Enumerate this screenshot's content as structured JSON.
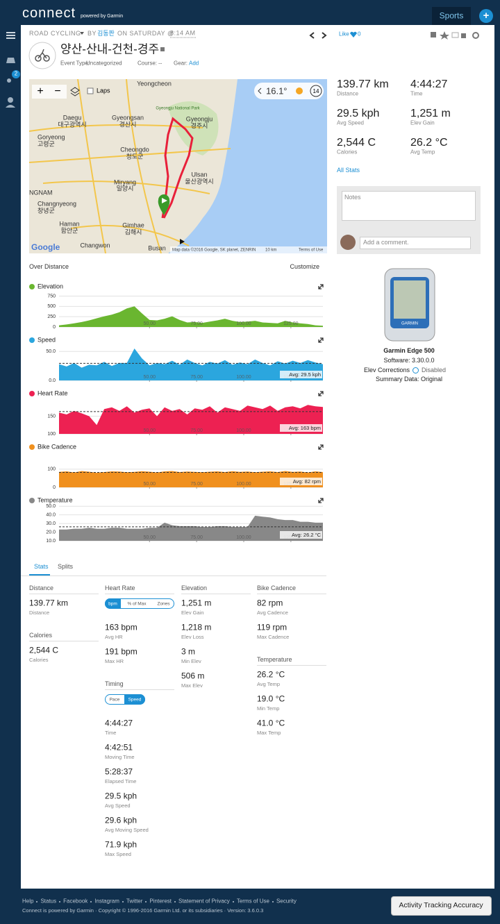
{
  "header": {
    "logo": "connect",
    "powered_by": "powered by Garmin",
    "sports": "Sports",
    "add": "+"
  },
  "sidebar": {
    "badge": "2"
  },
  "activity": {
    "type": "ROAD CYCLING",
    "by": "BY",
    "author": "김동판",
    "on": "ON SATURDAY @",
    "time": "8:14 AM",
    "title": "양산-산내-건천-경주",
    "event_type_label": "Event Type:",
    "event_type": "Uncategorized",
    "course_label": "Course:",
    "course": "--",
    "gear_label": "Gear:",
    "gear": "Add",
    "like": "Like",
    "likes": "0"
  },
  "map": {
    "zoom_in": "+",
    "zoom_out": "−",
    "laps": "Laps",
    "temperature": "16.1°",
    "wind": "14",
    "google": "Google",
    "attribution": "Map data ©2016 Google, SK planet, ZENRIN",
    "scale": "10 km",
    "terms": "Terms of Use",
    "labels": [
      "Yeongcheon",
      "Daegu",
      "대구광역시",
      "Gyeongsan",
      "경산시",
      "Gyeongju",
      "경주시",
      "Gyeongju National Park",
      "Cheongdo",
      "청도군",
      "Ulsan",
      "울산광역시",
      "Miryang",
      "밀양시",
      "Gimhae",
      "김해시",
      "Haman",
      "함안군",
      "Goryeong",
      "고령군",
      "Changwon",
      "Busan",
      "Changnyeong",
      "창녕군",
      "NGNAM"
    ]
  },
  "summary": [
    {
      "value": "139.77 km",
      "label": "Distance"
    },
    {
      "value": "4:44:27",
      "label": "Time"
    },
    {
      "value": "29.5 kph",
      "label": "Avg Speed"
    },
    {
      "value": "1,251 m",
      "label": "Elev Gain"
    },
    {
      "value": "2,544 C",
      "label": "Calories"
    },
    {
      "value": "26.2 °C",
      "label": "Avg Temp"
    }
  ],
  "all_stats": "All Stats",
  "notes": {
    "placeholder": "Notes",
    "comment_placeholder": "Add a comment."
  },
  "device": {
    "brand": "GARMIN",
    "name": "Garmin Edge 500",
    "software": "Software: 3.30.0.0",
    "elev_corrections": "Elev Corrections",
    "elev_status": "Disabled",
    "summary_data": "Summary Data: Original"
  },
  "profiles": {
    "over": "Over Distance",
    "customize": "Customize",
    "x": [
      2,
      6,
      10,
      14,
      18,
      22,
      26,
      30,
      34,
      38,
      42,
      46,
      50,
      54,
      58,
      62,
      66,
      70,
      74,
      78,
      82,
      86,
      90,
      94,
      98,
      102,
      106,
      110,
      114,
      118,
      122,
      126,
      130,
      134,
      138,
      142
    ],
    "xlim": [
      2,
      142
    ],
    "xticks": [
      {
        "value": 50,
        "label": "50.00"
      },
      {
        "value": 75,
        "label": "75.00"
      },
      {
        "value": 100,
        "label": "100.00"
      },
      {
        "value": 125,
        "label": "125.00"
      }
    ],
    "charts": [
      {
        "name": "Elevation",
        "color": "#6ab630",
        "ylim": [
          0,
          860
        ],
        "yticks": [
          0,
          250,
          500,
          750
        ],
        "values": [
          40,
          60,
          90,
          120,
          160,
          210,
          260,
          300,
          360,
          450,
          500,
          330,
          170,
          160,
          200,
          260,
          170,
          110,
          120,
          100,
          130,
          160,
          200,
          150,
          120,
          130,
          150,
          110,
          100,
          90,
          150,
          110,
          90,
          70,
          40,
          30
        ]
      },
      {
        "name": "Speed",
        "color": "#2ba6de",
        "ylim": [
          0,
          61
        ],
        "yticks": [
          {
            "value": 0,
            "label": "0.0"
          },
          {
            "value": 50,
            "label": "50.0"
          }
        ],
        "avg": {
          "value": 29.5,
          "label": "Avg: 29.5 kph"
        },
        "values": [
          28,
          24,
          30,
          22,
          27,
          26,
          32,
          25,
          30,
          30,
          55,
          38,
          26,
          30,
          28,
          34,
          27,
          36,
          30,
          26,
          32,
          29,
          35,
          27,
          31,
          28,
          36,
          30,
          26,
          33,
          29,
          34,
          30,
          35,
          31,
          28
        ]
      },
      {
        "name": "Heart Rate",
        "color": "#ed2152",
        "ylim": [
          100,
          200
        ],
        "yticks": [
          100,
          150
        ],
        "avg": {
          "value": 163,
          "label": "Avg: 163 bpm"
        },
        "values": [
          160,
          155,
          165,
          158,
          150,
          125,
          170,
          175,
          165,
          178,
          160,
          168,
          172,
          150,
          175,
          165,
          170,
          155,
          172,
          168,
          178,
          160,
          175,
          170,
          165,
          180,
          175,
          170,
          180,
          165,
          175,
          178,
          172,
          182,
          178,
          176
        ]
      },
      {
        "name": "Bike Cadence",
        "color": "#f0901e",
        "ylim": [
          0,
          195
        ],
        "yticks": [
          0,
          100
        ],
        "avg": {
          "value": 82,
          "label": "Avg: 82 rpm"
        },
        "values": [
          85,
          88,
          82,
          90,
          86,
          80,
          84,
          88,
          87,
          83,
          85,
          89,
          86,
          82,
          88,
          90,
          84,
          87,
          85,
          83,
          86,
          88,
          84,
          89,
          85,
          87,
          83,
          86,
          88,
          84,
          90,
          85,
          87,
          82,
          88,
          84
        ]
      },
      {
        "name": "Temperature",
        "color": "#888888",
        "ylim": [
          10,
          51
        ],
        "yticks": [
          {
            "value": 10,
            "label": "10.0"
          },
          {
            "value": 20,
            "label": "20.0"
          },
          {
            "value": 30,
            "label": "30.0"
          },
          {
            "value": 40,
            "label": "40.0"
          },
          {
            "value": 50,
            "label": "50.0"
          }
        ],
        "avg": {
          "value": 26.2,
          "label": "Avg: 26.2 °C"
        },
        "values": [
          23,
          23,
          24,
          24,
          25,
          24,
          24,
          25,
          25,
          24,
          24,
          24,
          25,
          25,
          31,
          28,
          27,
          27,
          27,
          26,
          26,
          27,
          27,
          26,
          26,
          26,
          39,
          38,
          37,
          35,
          34,
          34,
          32,
          32,
          31,
          31
        ]
      }
    ]
  },
  "tabs": [
    "Stats",
    "Splits"
  ],
  "stats": [
    [
      {
        "header": "Distance",
        "items": [
          {
            "value": "139.77 km",
            "label": "Distance"
          }
        ]
      },
      {
        "header": "Calories",
        "items": [
          {
            "value": "2,544 C",
            "label": "Calories"
          }
        ]
      }
    ],
    [
      {
        "header": "Heart Rate",
        "toggle": [
          "bpm",
          "% of Max",
          "Zones"
        ],
        "active": 0,
        "items": [
          {
            "value": "163 bpm",
            "label": "Avg HR"
          },
          {
            "value": "191 bpm",
            "label": "Max HR"
          }
        ]
      },
      {
        "header": "Timing",
        "toggle": [
          "Pace",
          "Speed"
        ],
        "active": 1,
        "items": [
          {
            "value": "4:44:27",
            "label": "Time"
          },
          {
            "value": "4:42:51",
            "label": "Moving Time"
          },
          {
            "value": "5:28:37",
            "label": "Elapsed Time"
          },
          {
            "value": "29.5 kph",
            "label": "Avg Speed"
          },
          {
            "value": "29.6 kph",
            "label": "Avg Moving Speed"
          },
          {
            "value": "71.9 kph",
            "label": "Max Speed"
          }
        ]
      }
    ],
    [
      {
        "header": "Elevation",
        "items": [
          {
            "value": "1,251 m",
            "label": "Elev Gain"
          },
          {
            "value": "1,218 m",
            "label": "Elev Loss"
          },
          {
            "value": "3 m",
            "label": "Min Elev"
          },
          {
            "value": "506 m",
            "label": "Max Elev"
          }
        ]
      }
    ],
    [
      {
        "header": "Bike Cadence",
        "items": [
          {
            "value": "82 rpm",
            "label": "Avg Cadence"
          },
          {
            "value": "119 rpm",
            "label": "Max Cadence"
          }
        ]
      },
      {
        "header": "Temperature",
        "items": [
          {
            "value": "26.2 °C",
            "label": "Avg Temp"
          },
          {
            "value": "19.0 °C",
            "label": "Min Temp"
          },
          {
            "value": "41.0 °C",
            "label": "Max Temp"
          }
        ]
      }
    ]
  ],
  "footer": {
    "links": [
      "Help",
      "Status",
      "Facebook",
      "Instagram",
      "Twitter",
      "Pinterest",
      "Statement of Privacy",
      "Terms of Use",
      "Security"
    ],
    "copyright": "Connect is powered by Garmin · Copyright © 1996-2016 Garmin Ltd. or its subsidiaries · Version: 3.6.0.3",
    "accuracy": "Activity Tracking Accuracy"
  }
}
